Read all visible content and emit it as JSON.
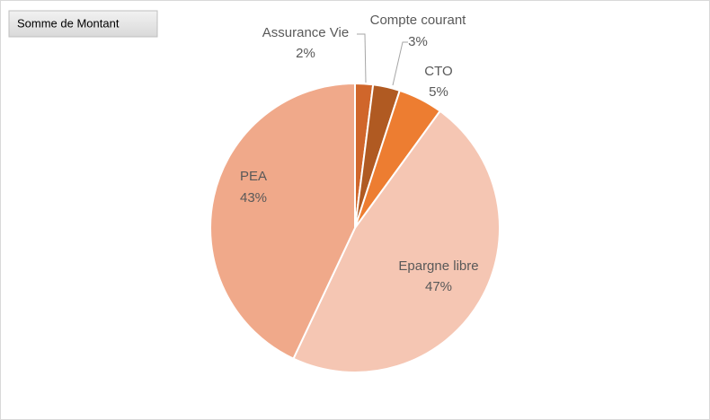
{
  "chart_data": {
    "type": "pie",
    "title": "Somme de Montant",
    "categories": [
      "Assurance Vie",
      "Compte courant",
      "CTO",
      "Epargne libre",
      "PEA"
    ],
    "values": [
      2,
      3,
      5,
      47,
      43
    ],
    "value_labels": [
      "2%",
      "3%",
      "5%",
      "47%",
      "43%"
    ],
    "colors": [
      "#d0662b",
      "#b05a22",
      "#ed7d31",
      "#f5c6b3",
      "#f0a98a"
    ]
  }
}
